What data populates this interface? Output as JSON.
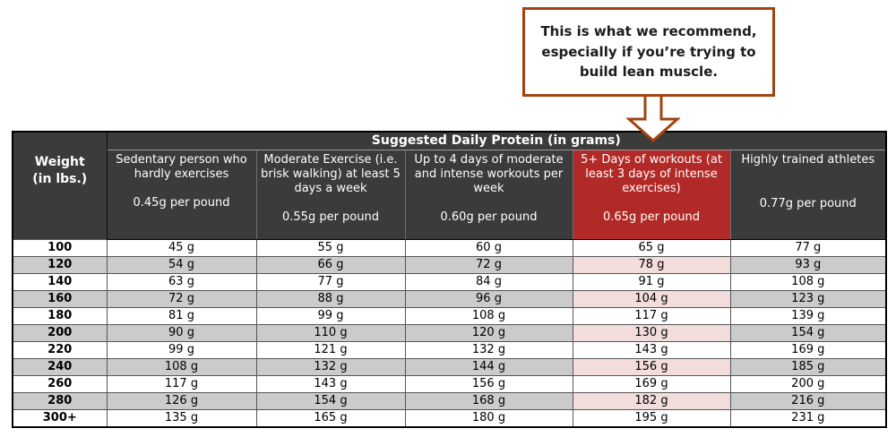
{
  "callout": {
    "text": "This is what we recommend, especially if you’re trying to build lean muscle."
  },
  "table": {
    "title": "Suggested Daily Protein (in grams)",
    "weight_header": "Weight\n(in lbs.)",
    "unit_suffix": " g",
    "columns": [
      {
        "title": "Sedentary person who hardly exercises",
        "rate": "0.45g per pound",
        "highlight": false,
        "extra_gap": false
      },
      {
        "title": "Moderate Exercise (i.e. brisk walking) at least 5 days a week",
        "rate": "0.55g per pound",
        "highlight": false,
        "extra_gap": false
      },
      {
        "title": "Up to 4 days of moderate and intense workouts per week",
        "rate": "0.60g per pound",
        "highlight": false,
        "extra_gap": false
      },
      {
        "title": "5+ Days of workouts (at least 3 days of intense exercises)",
        "rate": "0.65g per pound",
        "highlight": true,
        "extra_gap": false
      },
      {
        "title": "Highly trained athletes",
        "rate": "0.77g per pound",
        "highlight": false,
        "extra_gap": true
      }
    ]
  },
  "chart_data": {
    "type": "table",
    "title": "Suggested Daily Protein (in grams)",
    "row_label": "Weight (in lbs.)",
    "categories": [
      "100",
      "120",
      "140",
      "160",
      "180",
      "200",
      "220",
      "240",
      "260",
      "280",
      "300+"
    ],
    "series": [
      {
        "name": "Sedentary person who hardly exercises",
        "rate_per_pound": "0.45g",
        "values": [
          45,
          54,
          63,
          72,
          81,
          90,
          99,
          108,
          117,
          126,
          135
        ]
      },
      {
        "name": "Moderate Exercise (i.e. brisk walking) at least 5 days a week",
        "rate_per_pound": "0.55g",
        "values": [
          55,
          66,
          77,
          88,
          99,
          110,
          121,
          132,
          143,
          154,
          165
        ]
      },
      {
        "name": "Up to 4 days of moderate and intense workouts per week",
        "rate_per_pound": "0.60g",
        "values": [
          60,
          72,
          84,
          96,
          108,
          120,
          132,
          144,
          156,
          168,
          180
        ]
      },
      {
        "name": "5+ Days of workouts (at least 3 days of intense exercises)",
        "rate_per_pound": "0.65g",
        "values": [
          65,
          78,
          91,
          104,
          117,
          130,
          143,
          156,
          169,
          182,
          195
        ]
      },
      {
        "name": "Highly trained athletes",
        "rate_per_pound": "0.77g",
        "values": [
          77,
          93,
          108,
          123,
          139,
          154,
          169,
          185,
          200,
          216,
          231
        ]
      }
    ],
    "highlighted_series": "5+ Days of workouts (at least 3 days of intense exercises)",
    "annotation": "This is what we recommend, especially if you’re trying to build lean muscle.",
    "unit": "g"
  },
  "colors": {
    "header_bg": "#3b3b3b",
    "highlight_bg": "#b22a27",
    "stripe_gray": "#cbcbcb",
    "stripe_pink": "#f2dcdc",
    "callout_border": "#a34312"
  }
}
